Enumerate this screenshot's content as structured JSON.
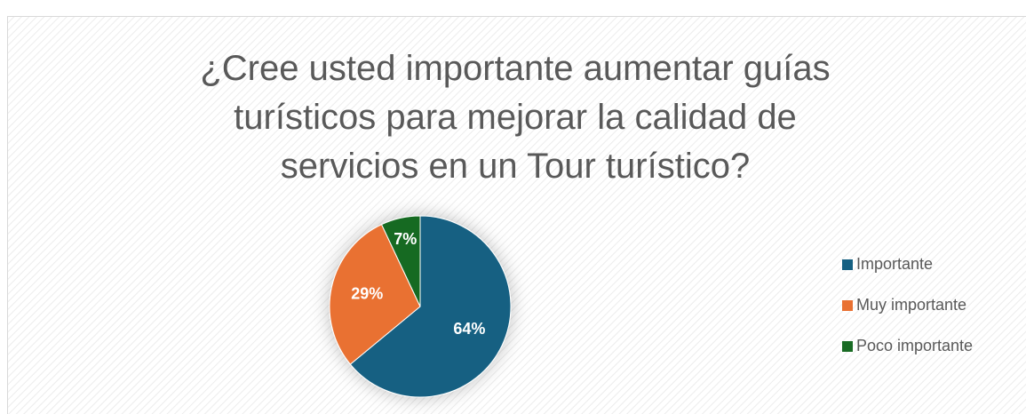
{
  "chart_data": {
    "type": "pie",
    "title": "¿Cree usted importante aumentar guías turísticos para mejorar la calidad de servicios en un Tour turístico?",
    "categories": [
      "Importante",
      "Muy importante",
      "Poco importante"
    ],
    "values": [
      64,
      29,
      7
    ],
    "value_labels": [
      "64%",
      "29%",
      "7%"
    ],
    "colors": [
      "#156082",
      "#e97132",
      "#196b24"
    ],
    "legend": "right"
  }
}
